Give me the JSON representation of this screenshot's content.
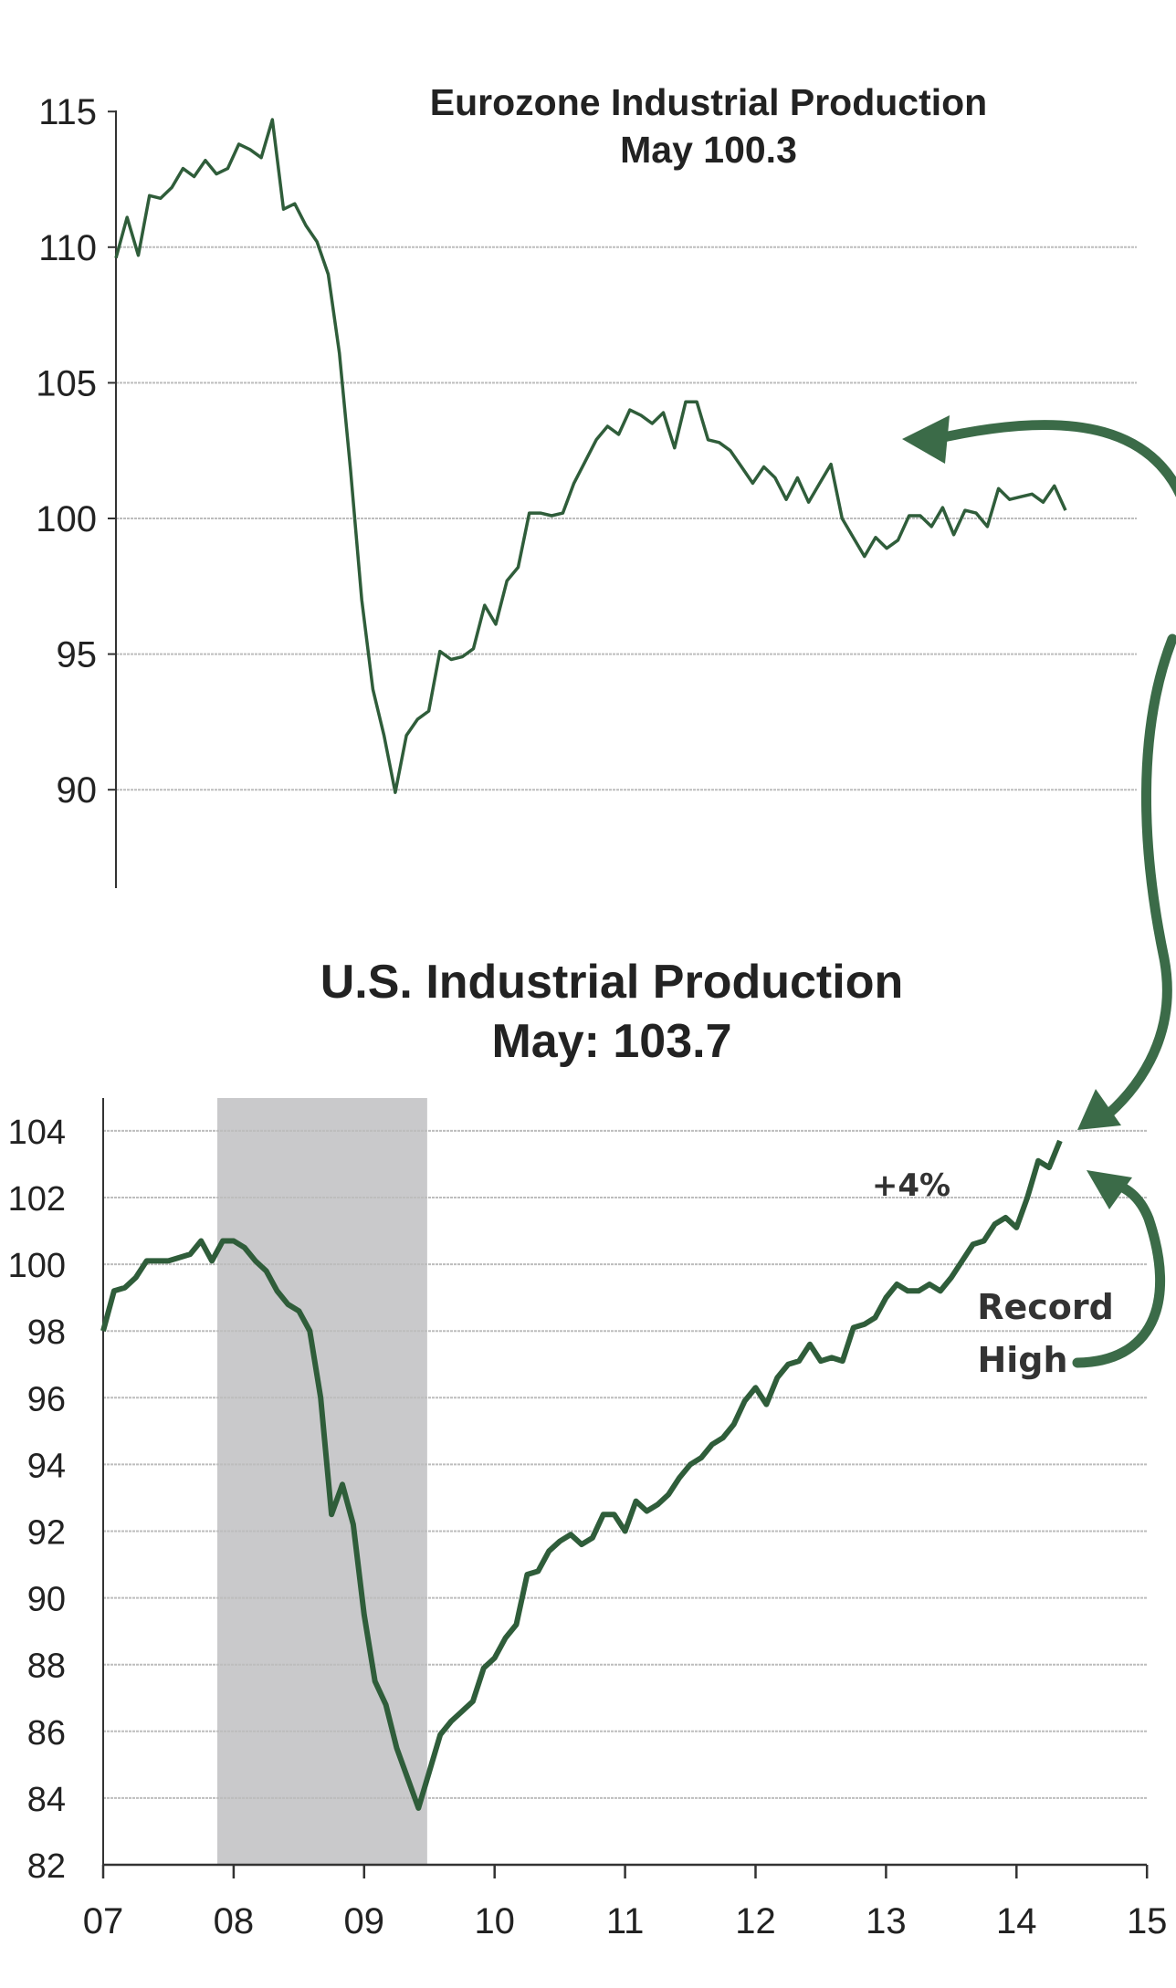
{
  "colors": {
    "line": "#2f5d3a",
    "arrow": "#3b6b48",
    "recession": "#c9c9cb",
    "grid": "#bdbdbd",
    "axis": "#333333"
  },
  "chart_data": [
    {
      "type": "line",
      "title": "Eurozone Industrial Production",
      "subtitle": "May 100.3",
      "xlabel": "",
      "ylabel": "",
      "ylim": [
        87,
        115
      ],
      "yticks": [
        115,
        110,
        105,
        100,
        95,
        90
      ],
      "ytick_labels": [
        "115",
        "110",
        "105",
        "100",
        "95",
        "90"
      ],
      "grid": true,
      "x_start": "2007-01",
      "x_end": "2014-05",
      "series": [
        {
          "name": "Eurozone Industrial Production",
          "values": [
            109.6,
            111.1,
            109.7,
            111.9,
            111.8,
            112.2,
            112.9,
            112.6,
            113.2,
            112.7,
            112.9,
            113.8,
            113.6,
            113.3,
            114.7,
            111.4,
            111.6,
            110.8,
            110.2,
            109.0,
            106.1,
            101.8,
            97.0,
            93.7,
            92.0,
            89.9,
            92.0,
            92.6,
            92.9,
            95.1,
            94.8,
            94.9,
            95.2,
            96.8,
            96.1,
            97.7,
            98.2,
            100.2,
            100.2,
            100.1,
            100.2,
            101.3,
            102.1,
            102.9,
            103.4,
            103.1,
            104.0,
            103.8,
            103.5,
            103.9,
            102.6,
            104.3,
            104.3,
            102.9,
            102.8,
            102.5,
            101.9,
            101.3,
            101.9,
            101.5,
            100.7,
            101.5,
            100.6,
            101.3,
            102.0,
            100.0,
            99.3,
            98.6,
            99.3,
            98.9,
            99.2,
            100.1,
            100.1,
            99.7,
            100.4,
            99.4,
            100.3,
            100.2,
            99.7,
            101.1,
            100.7,
            100.8,
            100.9,
            100.6,
            101.2,
            100.3
          ]
        }
      ]
    },
    {
      "type": "line",
      "title": "U.S. Industrial Production",
      "subtitle": "May: 103.7",
      "xlabel": "",
      "ylabel": "",
      "ylim": [
        82,
        105
      ],
      "yticks": [
        104,
        102,
        100,
        98,
        96,
        94,
        92,
        90,
        88,
        86,
        84,
        82
      ],
      "ytick_labels": [
        "104",
        "102",
        "100",
        "98",
        "96",
        "94",
        "92",
        "90",
        "88",
        "86",
        "84",
        "82"
      ],
      "xlim": [
        2007,
        2015
      ],
      "xticks": [
        2007,
        2008,
        2009,
        2010,
        2011,
        2012,
        2013,
        2014,
        2015
      ],
      "xtick_labels": [
        "07",
        "08",
        "09",
        "10",
        "11",
        "12",
        "13",
        "14",
        "15"
      ],
      "grid": true,
      "recession_months_from_jan2007": [
        10.5,
        29.8
      ],
      "annotations": {
        "change": "+4%",
        "record_line1": "Record",
        "record_line2": "High"
      },
      "series": [
        {
          "name": "U.S. Industrial Production",
          "start": "2007-01",
          "values": [
            98.0,
            99.2,
            99.3,
            99.6,
            100.1,
            100.1,
            100.1,
            100.2,
            100.3,
            100.7,
            100.1,
            100.7,
            100.7,
            100.5,
            100.1,
            99.8,
            99.2,
            98.8,
            98.6,
            98.0,
            96.0,
            92.5,
            93.4,
            92.2,
            89.5,
            87.5,
            86.8,
            85.5,
            84.6,
            83.7,
            84.8,
            85.9,
            86.3,
            86.6,
            86.9,
            87.9,
            88.2,
            88.8,
            89.2,
            90.7,
            90.8,
            91.4,
            91.7,
            91.9,
            91.6,
            91.8,
            92.5,
            92.5,
            92.0,
            92.9,
            92.6,
            92.8,
            93.1,
            93.6,
            94.0,
            94.2,
            94.6,
            94.8,
            95.2,
            95.9,
            96.3,
            95.8,
            96.6,
            97.0,
            97.1,
            97.6,
            97.1,
            97.2,
            97.1,
            98.1,
            98.2,
            98.4,
            99.0,
            99.4,
            99.2,
            99.2,
            99.4,
            99.2,
            99.6,
            100.1,
            100.6,
            100.7,
            101.2,
            101.4,
            101.1,
            102.0,
            103.1,
            102.9,
            103.7
          ]
        }
      ]
    }
  ]
}
